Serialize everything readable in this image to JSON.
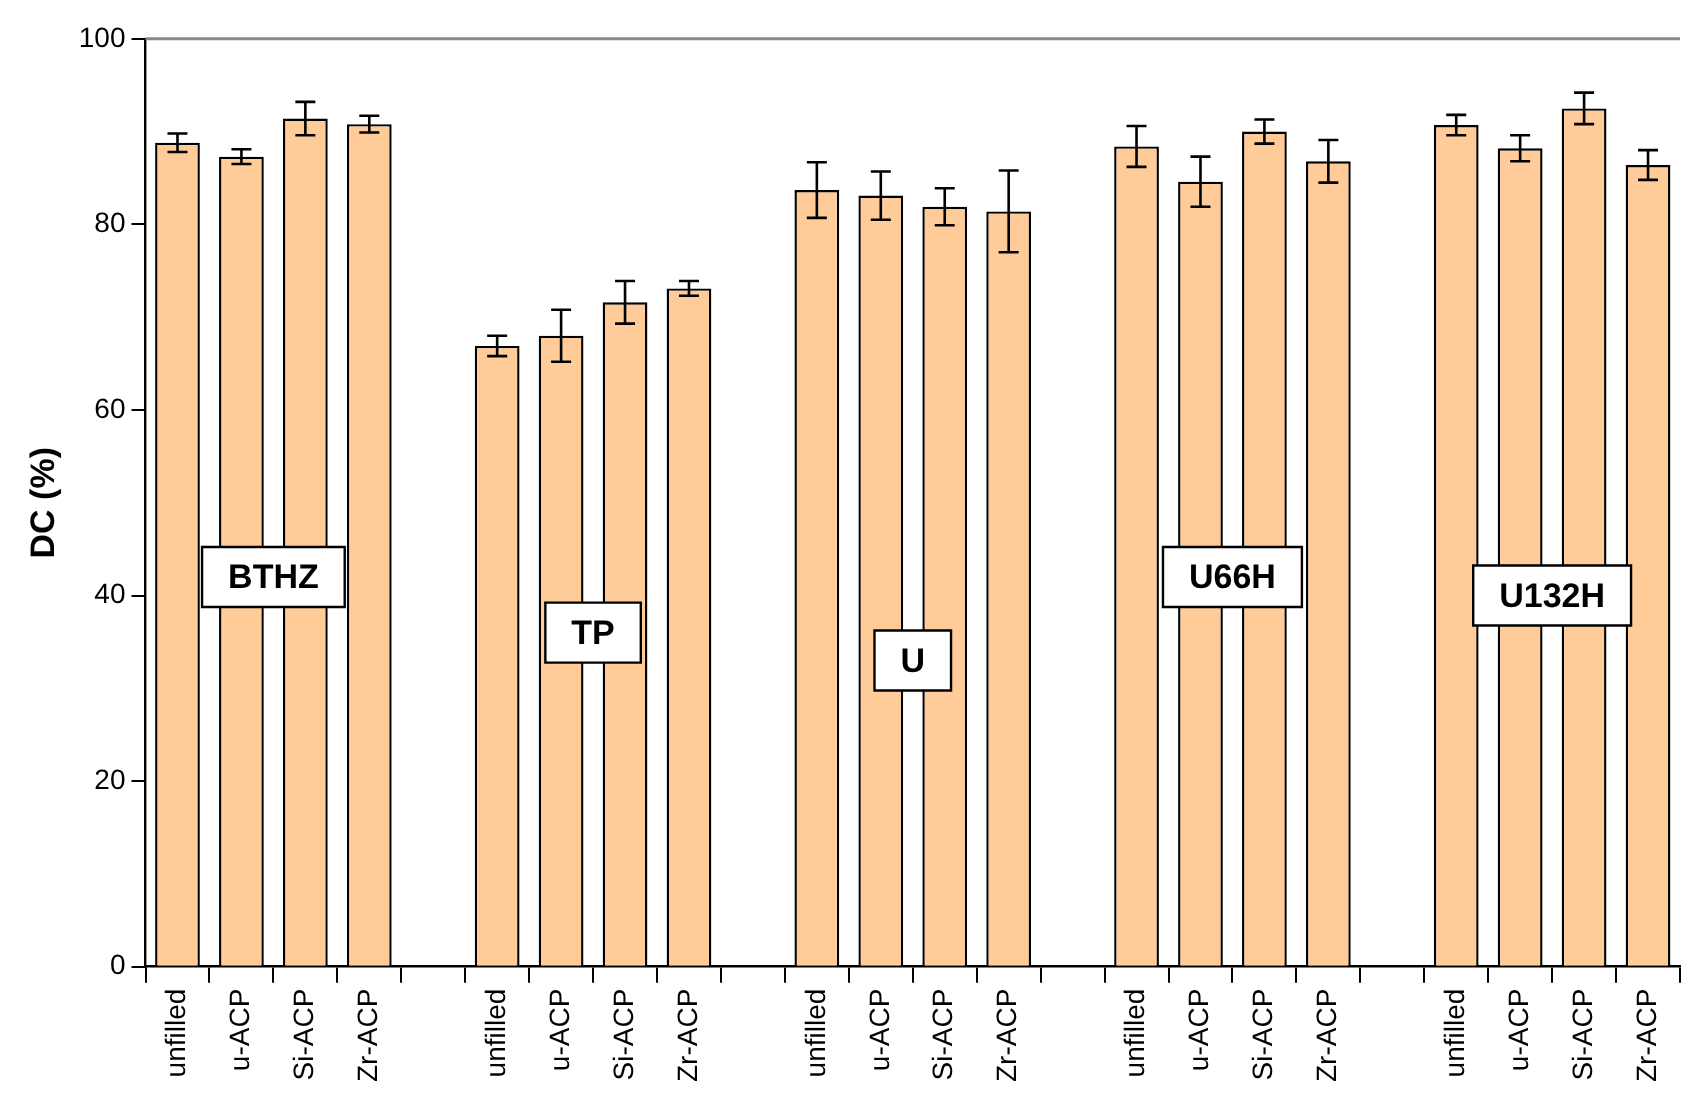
{
  "chart_data": {
    "type": "bar",
    "ylabel": "DC (%)",
    "categories": [
      "unfilled",
      "u-ACP",
      "Si-ACP",
      "Zr-ACP",
      null,
      "unfilled",
      "u-ACP",
      "Si-ACP",
      "Zr-ACP",
      null,
      "unfilled",
      "u-ACP",
      "Si-ACP",
      "Zr-ACP",
      null,
      "unfilled",
      "u-ACP",
      "Si-ACP",
      "Zr-ACP",
      null,
      "unfilled",
      "u-ACP",
      "Si-ACP",
      "Zr-ACP"
    ],
    "series": [
      {
        "color": "#ffcc99",
        "values": [
          88.8,
          87.3,
          91.4,
          90.8,
          null,
          66.9,
          68.0,
          71.6,
          73.1,
          null,
          83.7,
          83.1,
          81.9,
          81.4,
          null,
          88.4,
          84.6,
          90.0,
          86.8,
          null,
          90.7,
          88.2,
          92.5,
          86.4
        ],
        "errors": [
          1.0,
          0.8,
          1.8,
          0.9,
          null,
          1.1,
          2.8,
          2.3,
          0.8,
          null,
          3.0,
          2.6,
          2.0,
          4.4,
          null,
          2.2,
          2.7,
          1.3,
          2.3,
          null,
          1.1,
          1.4,
          1.7,
          1.6
        ]
      }
    ],
    "ylim": [
      0,
      100
    ],
    "yticks": [
      0,
      20,
      40,
      60,
      80,
      100
    ],
    "grid": false,
    "legend": false,
    "annotations": [
      "BTHZ",
      "TP",
      "U",
      "U66H",
      "U132H"
    ]
  }
}
